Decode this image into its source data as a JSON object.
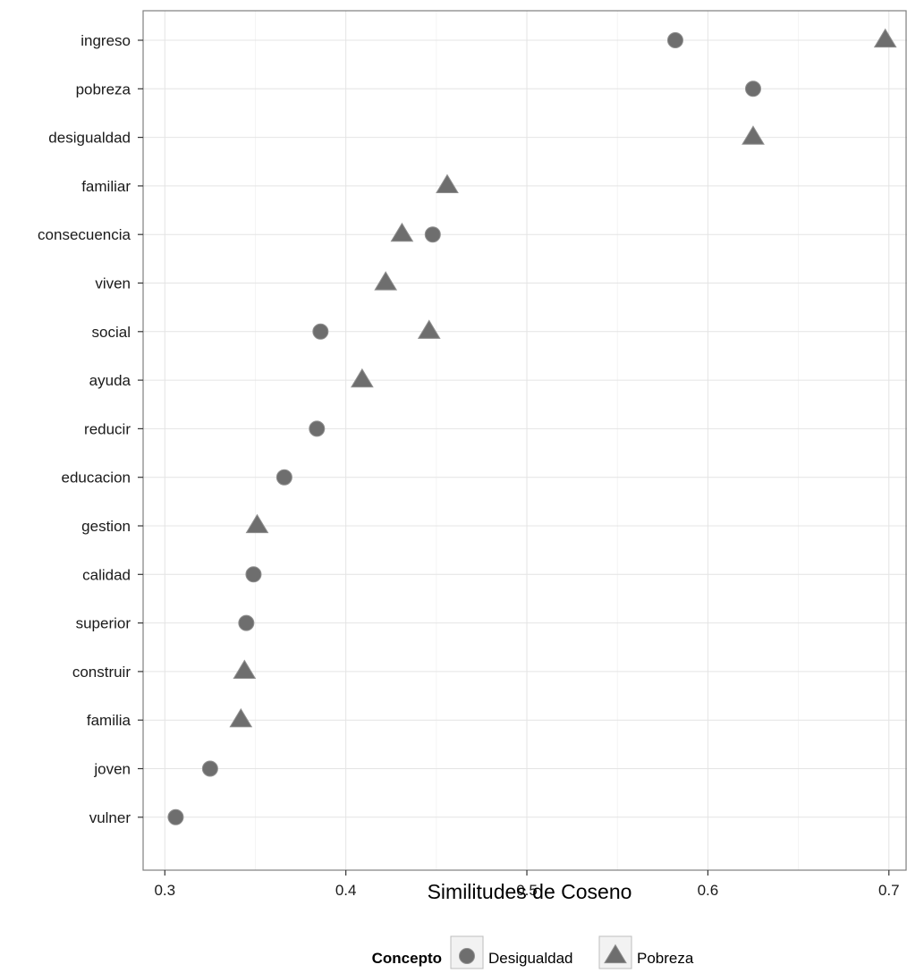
{
  "chart_data": {
    "type": "scatter",
    "xlabel": "Similitudes de Coseno",
    "ylabel": "",
    "xlim": [
      0.288,
      0.71
    ],
    "x_ticks": [
      "0.3",
      "0.4",
      "0.5",
      "0.6",
      "0.7"
    ],
    "categories": [
      "ingreso",
      "pobreza",
      "desigualdad",
      "familiar",
      "consecuencia",
      "viven",
      "social",
      "ayuda",
      "reducir",
      "educacion",
      "gestion",
      "calidad",
      "superior",
      "construir",
      "familia",
      "joven",
      "vulner"
    ],
    "series": [
      {
        "name": "Desigualdad",
        "marker": "circle",
        "color": "#6e6e6e",
        "points": [
          {
            "category": "ingreso",
            "x": 0.582
          },
          {
            "category": "pobreza",
            "x": 0.625
          },
          {
            "category": "consecuencia",
            "x": 0.448
          },
          {
            "category": "social",
            "x": 0.386
          },
          {
            "category": "reducir",
            "x": 0.384
          },
          {
            "category": "educacion",
            "x": 0.366
          },
          {
            "category": "calidad",
            "x": 0.349
          },
          {
            "category": "superior",
            "x": 0.345
          },
          {
            "category": "joven",
            "x": 0.325
          },
          {
            "category": "vulner",
            "x": 0.306
          }
        ]
      },
      {
        "name": "Pobreza",
        "marker": "triangle",
        "color": "#6e6e6e",
        "points": [
          {
            "category": "ingreso",
            "x": 0.698
          },
          {
            "category": "desigualdad",
            "x": 0.625
          },
          {
            "category": "familiar",
            "x": 0.456
          },
          {
            "category": "consecuencia",
            "x": 0.431
          },
          {
            "category": "viven",
            "x": 0.422
          },
          {
            "category": "social",
            "x": 0.446
          },
          {
            "category": "ayuda",
            "x": 0.409
          },
          {
            "category": "gestion",
            "x": 0.351
          },
          {
            "category": "construir",
            "x": 0.344
          },
          {
            "category": "familia",
            "x": 0.342
          }
        ]
      }
    ],
    "grid": true,
    "legend": {
      "title": "Concepto",
      "placement": "bottom",
      "entries": [
        "Desigualdad",
        "Pobreza"
      ]
    }
  }
}
